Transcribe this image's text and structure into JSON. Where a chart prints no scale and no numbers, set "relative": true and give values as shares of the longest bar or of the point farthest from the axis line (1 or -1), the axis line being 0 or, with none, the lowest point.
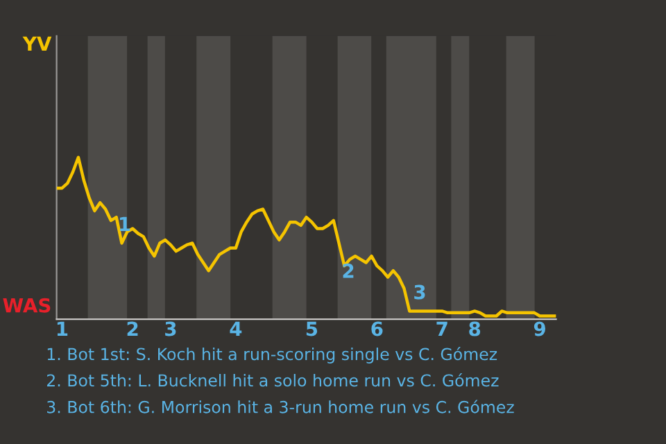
{
  "chart_data": {
    "type": "line",
    "relative": true,
    "categories": [
      null,
      "1",
      null,
      null,
      null,
      null,
      null,
      null,
      null,
      null,
      null,
      null,
      null,
      null,
      "2",
      null,
      null,
      null,
      null,
      null,
      null,
      "3",
      null,
      null,
      null,
      null,
      null,
      null,
      null,
      null,
      null,
      null,
      null,
      "4",
      null,
      null,
      null,
      null,
      null,
      null,
      null,
      null,
      null,
      null,
      null,
      null,
      null,
      "5",
      null,
      null,
      null,
      null,
      null,
      null,
      null,
      null,
      null,
      null,
      null,
      "6",
      null,
      null,
      null,
      null,
      null,
      null,
      null,
      null,
      null,
      null,
      null,
      "7",
      null,
      null,
      null,
      null,
      null,
      "8",
      null,
      null,
      null,
      null,
      null,
      null,
      null,
      null,
      null,
      null,
      null,
      "9",
      null,
      null,
      null
    ],
    "series": [
      {
        "color": "#f5c400",
        "values": [
          0.81,
          0.81,
          0.84,
          0.91,
          1,
          0.86,
          0.75,
          0.67,
          0.72,
          0.68,
          0.61,
          0.63,
          0.47,
          0.54,
          0.56,
          0.53,
          0.51,
          0.44,
          0.39,
          0.47,
          0.49,
          0.46,
          0.42,
          0.44,
          0.46,
          0.47,
          0.4,
          0.35,
          0.3,
          0.35,
          0.4,
          0.42,
          0.44,
          0.44,
          0.54,
          0.6,
          0.65,
          0.67,
          0.68,
          0.61,
          0.54,
          0.49,
          0.54,
          0.6,
          0.6,
          0.58,
          0.63,
          0.6,
          0.56,
          0.56,
          0.58,
          0.61,
          0.47,
          0.33,
          0.37,
          0.39,
          0.37,
          0.35,
          0.39,
          0.33,
          0.3,
          0.26,
          0.3,
          0.26,
          0.19,
          0.05,
          0.05,
          0.05,
          0.05,
          0.05,
          0.05,
          0.05,
          0.04,
          0.04,
          0.04,
          0.04,
          0.04,
          0.05,
          0.04,
          0.02,
          0.02,
          0.02,
          0.05,
          0.04,
          0.04,
          0.04,
          0.04,
          0.04,
          0.04,
          0.02,
          0.02,
          0.02,
          0.02
        ]
      }
    ],
    "annotations": [
      "YV",
      "WAS",
      "1",
      "2",
      "3",
      "1. Bot 1st: S. Koch hit a run-scoring single vs C. Gómez",
      "2. Bot 5th: L. Bucknell hit a solo home run vs C. Gómez",
      "3. Bot 6th: G. Morrison hit a 3-run home run vs C. Gómez"
    ]
  }
}
